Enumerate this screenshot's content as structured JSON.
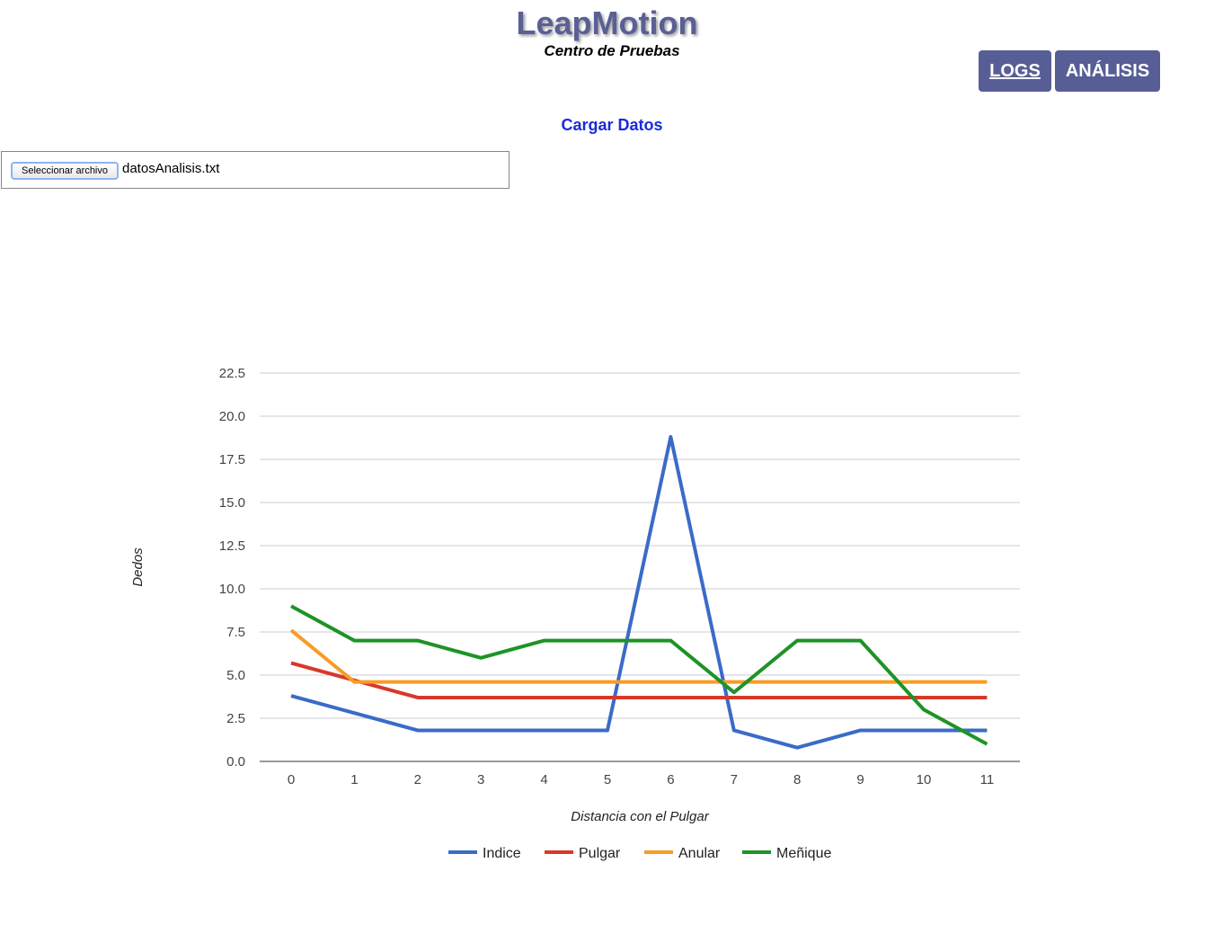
{
  "header": {
    "title": "LeapMotion",
    "subtitle": "Centro de Pruebas"
  },
  "nav": {
    "logs_label": "LOGS",
    "analisis_label": "ANÁLISIS"
  },
  "section_title": "Cargar Datos",
  "file_input": {
    "button_label": "Seleccionar archivo",
    "file_name": "datosAnalisis.txt"
  },
  "colors": {
    "brand": "#575e95",
    "section_title": "#1a2bdb"
  },
  "chart_data": {
    "type": "line",
    "title": "",
    "xlabel": "Distancia con el Pulgar",
    "ylabel": "Dedos",
    "x": [
      0,
      1,
      2,
      3,
      4,
      5,
      6,
      7,
      8,
      9,
      10,
      11
    ],
    "ylim": [
      0,
      22.5
    ],
    "yticks": [
      "0.0",
      "2.5",
      "5.0",
      "7.5",
      "10.0",
      "12.5",
      "15.0",
      "17.5",
      "20.0",
      "22.5"
    ],
    "grid": true,
    "legend_position": "bottom",
    "series": [
      {
        "name": "Indice",
        "color": "#3a6bc9",
        "values": [
          3.8,
          2.8,
          1.8,
          1.8,
          1.8,
          1.8,
          18.8,
          1.8,
          0.8,
          1.8,
          1.8,
          1.8
        ]
      },
      {
        "name": "Pulgar",
        "color": "#d6392a",
        "values": [
          5.7,
          4.7,
          3.7,
          3.7,
          3.7,
          3.7,
          3.7,
          3.7,
          3.7,
          3.7,
          3.7,
          3.7
        ]
      },
      {
        "name": "Anular",
        "color": "#f99c23",
        "values": [
          7.6,
          4.6,
          4.6,
          4.6,
          4.6,
          4.6,
          4.6,
          4.6,
          4.6,
          4.6,
          4.6,
          4.6
        ]
      },
      {
        "name": "Meñique",
        "color": "#1e9326",
        "values": [
          9.0,
          7.0,
          7.0,
          6.0,
          7.0,
          7.0,
          7.0,
          4.0,
          7.0,
          7.0,
          3.0,
          1.0
        ]
      }
    ]
  }
}
